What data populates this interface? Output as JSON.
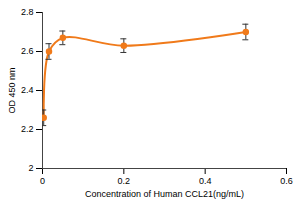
{
  "chart_data": {
    "type": "line",
    "x_label": "Concentration of Human CCL21(ng/mL)",
    "y_label": "OD 450 nm",
    "x": [
      0.003,
      0.016,
      0.05,
      0.2,
      0.5
    ],
    "values": [
      2.26,
      2.6,
      2.67,
      2.63,
      2.7
    ],
    "errors": [
      0.04,
      0.04,
      0.035,
      0.035,
      0.04
    ],
    "color": "#f07a1a",
    "marker": "circle",
    "line_style": "smooth",
    "xlim": [
      0,
      0.6
    ],
    "xticks": [
      0,
      0.2,
      0.4,
      0.6
    ],
    "ylim": [
      2,
      2.8
    ],
    "yticks": [
      2,
      2.2,
      2.4,
      2.6,
      2.8
    ],
    "grid": false
  }
}
